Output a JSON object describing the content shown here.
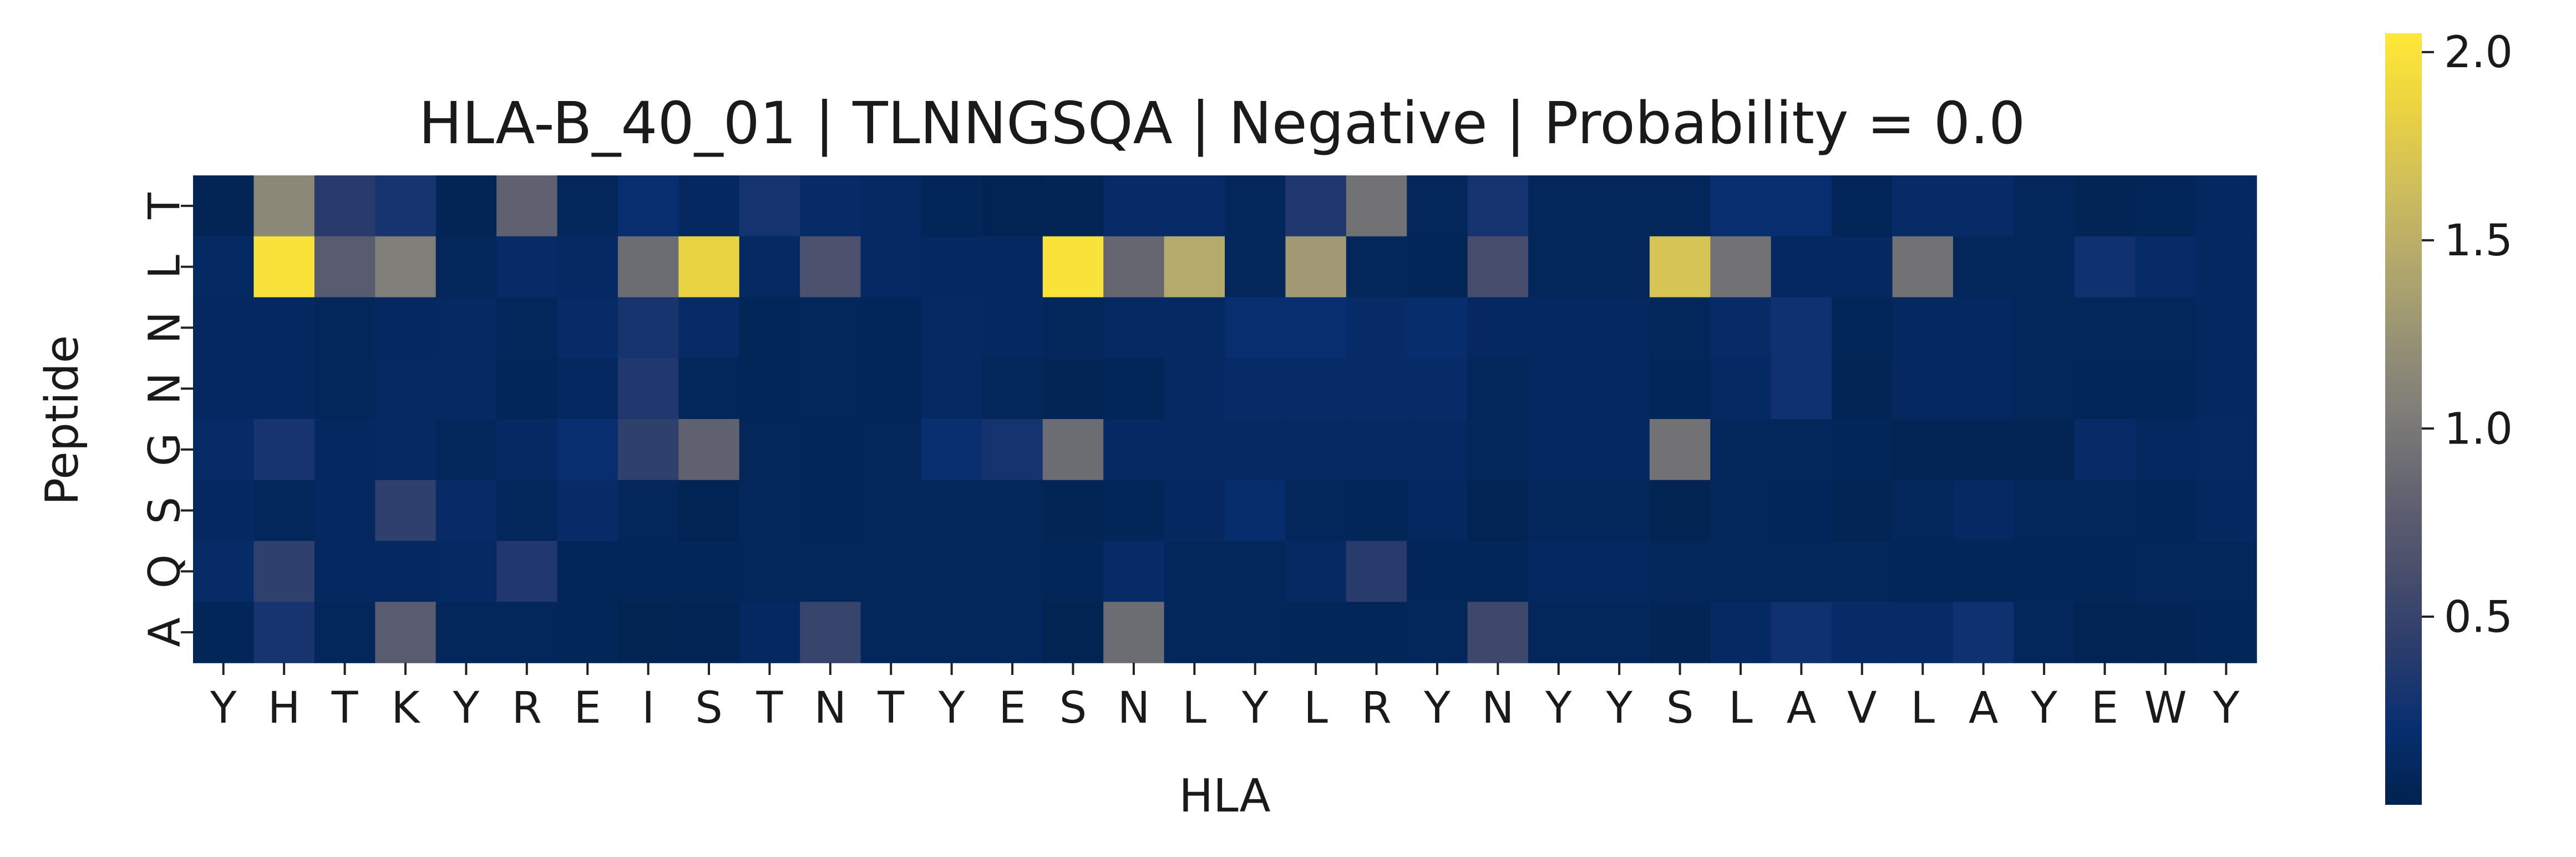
{
  "chart_data": {
    "type": "heatmap",
    "title": "HLA-B_40_01 | TLNNGSQA | Negative | Probability = 0.0",
    "xlabel": "HLA",
    "ylabel": "Peptide",
    "x_labels": [
      "Y",
      "H",
      "T",
      "K",
      "Y",
      "R",
      "E",
      "I",
      "S",
      "T",
      "N",
      "T",
      "Y",
      "E",
      "S",
      "N",
      "L",
      "Y",
      "L",
      "R",
      "Y",
      "N",
      "Y",
      "Y",
      "S",
      "L",
      "A",
      "V",
      "L",
      "A",
      "Y",
      "E",
      "W",
      "Y"
    ],
    "y_labels": [
      "T",
      "L",
      "N",
      "N",
      "G",
      "S",
      "Q",
      "A"
    ],
    "values": [
      [
        0.05,
        1.15,
        0.4,
        0.3,
        0.05,
        0.8,
        0.08,
        0.2,
        0.1,
        0.28,
        0.15,
        0.12,
        0.06,
        0.04,
        0.05,
        0.15,
        0.15,
        0.08,
        0.35,
        0.95,
        0.08,
        0.28,
        0.08,
        0.08,
        0.08,
        0.2,
        0.2,
        0.06,
        0.15,
        0.15,
        0.08,
        0.05,
        0.06,
        0.1
      ],
      [
        0.12,
        2.0,
        0.75,
        1.05,
        0.08,
        0.15,
        0.12,
        0.9,
        1.85,
        0.12,
        0.65,
        0.12,
        0.1,
        0.1,
        2.0,
        0.85,
        1.45,
        0.08,
        1.3,
        0.08,
        0.06,
        0.6,
        0.08,
        0.08,
        1.7,
        0.95,
        0.1,
        0.1,
        0.95,
        0.08,
        0.08,
        0.25,
        0.15,
        0.1
      ],
      [
        0.1,
        0.1,
        0.08,
        0.1,
        0.12,
        0.08,
        0.15,
        0.3,
        0.15,
        0.06,
        0.08,
        0.07,
        0.12,
        0.1,
        0.08,
        0.12,
        0.12,
        0.2,
        0.2,
        0.15,
        0.18,
        0.1,
        0.1,
        0.1,
        0.08,
        0.15,
        0.25,
        0.06,
        0.1,
        0.1,
        0.08,
        0.08,
        0.08,
        0.1
      ],
      [
        0.1,
        0.1,
        0.08,
        0.12,
        0.12,
        0.06,
        0.1,
        0.35,
        0.08,
        0.06,
        0.08,
        0.07,
        0.12,
        0.08,
        0.05,
        0.06,
        0.12,
        0.15,
        0.15,
        0.15,
        0.15,
        0.08,
        0.1,
        0.1,
        0.06,
        0.12,
        0.25,
        0.05,
        0.1,
        0.1,
        0.08,
        0.06,
        0.06,
        0.1
      ],
      [
        0.15,
        0.3,
        0.1,
        0.12,
        0.08,
        0.12,
        0.2,
        0.45,
        0.8,
        0.08,
        0.06,
        0.08,
        0.22,
        0.28,
        0.9,
        0.12,
        0.12,
        0.12,
        0.12,
        0.12,
        0.12,
        0.08,
        0.1,
        0.1,
        0.95,
        0.08,
        0.08,
        0.06,
        0.05,
        0.05,
        0.05,
        0.15,
        0.1,
        0.12
      ],
      [
        0.1,
        0.08,
        0.1,
        0.45,
        0.15,
        0.08,
        0.15,
        0.08,
        0.04,
        0.08,
        0.06,
        0.08,
        0.08,
        0.08,
        0.05,
        0.06,
        0.1,
        0.18,
        0.08,
        0.06,
        0.1,
        0.04,
        0.08,
        0.08,
        0.03,
        0.08,
        0.07,
        0.05,
        0.08,
        0.12,
        0.08,
        0.08,
        0.07,
        0.1
      ],
      [
        0.15,
        0.45,
        0.1,
        0.1,
        0.12,
        0.35,
        0.06,
        0.06,
        0.06,
        0.08,
        0.08,
        0.08,
        0.08,
        0.08,
        0.06,
        0.15,
        0.08,
        0.08,
        0.12,
        0.4,
        0.06,
        0.06,
        0.1,
        0.1,
        0.08,
        0.08,
        0.08,
        0.08,
        0.06,
        0.06,
        0.06,
        0.06,
        0.08,
        0.08
      ],
      [
        0.06,
        0.3,
        0.08,
        0.75,
        0.08,
        0.08,
        0.06,
        0.03,
        0.04,
        0.1,
        0.5,
        0.08,
        0.08,
        0.08,
        0.03,
        0.9,
        0.08,
        0.08,
        0.06,
        0.06,
        0.08,
        0.55,
        0.08,
        0.08,
        0.05,
        0.12,
        0.25,
        0.15,
        0.15,
        0.25,
        0.08,
        0.04,
        0.05,
        0.06
      ]
    ],
    "colormap": "cividis",
    "vmin": 0.0,
    "vmax": 2.05,
    "colorbar_ticks": [
      0.5,
      1.0,
      1.5,
      2.0
    ],
    "colorbar_tick_labels": [
      "0.5",
      "1.0",
      "1.5",
      "2.0"
    ],
    "grid": false,
    "legend": "colorbar-right"
  }
}
